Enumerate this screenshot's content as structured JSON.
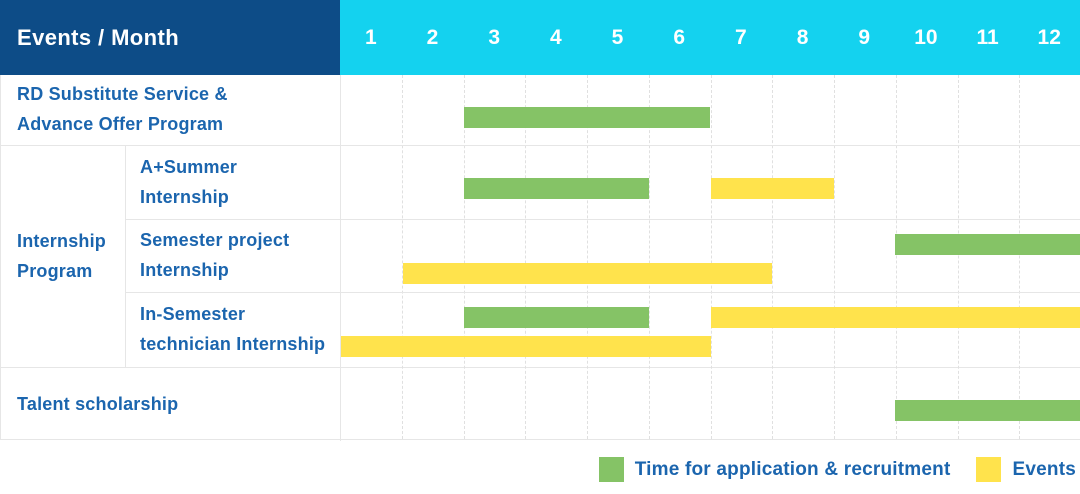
{
  "header": {
    "title": "Events / Month"
  },
  "colors": {
    "header_bg": "#0d4c87",
    "months_bg": "#14d2ef",
    "label_text": "#1b65ae",
    "recruitment": "#85c366",
    "events": "#ffe34c"
  },
  "chart_data": {
    "type": "gantt",
    "title": "Events / Month",
    "x_axis": "Month",
    "months": [
      "1",
      "2",
      "3",
      "4",
      "5",
      "6",
      "7",
      "8",
      "9",
      "10",
      "11",
      "12"
    ],
    "group_label": "Internship\nProgram",
    "rows": [
      {
        "label": "RD Substitute Service &\nAdvance Offer Program",
        "group": null,
        "bars": [
          {
            "type": "recruitment",
            "start": 3,
            "end": 6,
            "lane": "center"
          }
        ]
      },
      {
        "label": "A+Summer\nInternship",
        "group": "Internship Program",
        "bars": [
          {
            "type": "recruitment",
            "start": 3,
            "end": 5,
            "lane": "center"
          },
          {
            "type": "events",
            "start": 7,
            "end": 8,
            "lane": "center"
          }
        ]
      },
      {
        "label": "Semester project\nInternship",
        "group": "Internship Program",
        "bars": [
          {
            "type": "recruitment",
            "start": 10,
            "end": 12,
            "lane": "top"
          },
          {
            "type": "events",
            "start": 2,
            "end": 7,
            "lane": "bottom"
          }
        ]
      },
      {
        "label": "In-Semester\ntechnician Internship",
        "group": "Internship Program",
        "bars": [
          {
            "type": "recruitment",
            "start": 3,
            "end": 5,
            "lane": "top"
          },
          {
            "type": "events",
            "start": 7,
            "end": 12,
            "lane": "top"
          },
          {
            "type": "events",
            "start": 1,
            "end": 6,
            "lane": "bottom"
          }
        ]
      },
      {
        "label": "Talent scholarship",
        "group": null,
        "bars": [
          {
            "type": "recruitment",
            "start": 10,
            "end": 12,
            "lane": "center"
          }
        ]
      }
    ],
    "legend": [
      {
        "label": "Time for application & recruitment",
        "color_key": "recruitment"
      },
      {
        "label": "Events",
        "color_key": "events"
      }
    ]
  }
}
